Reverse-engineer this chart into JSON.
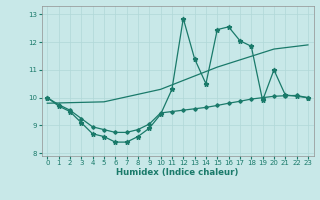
{
  "xlabel": "Humidex (Indice chaleur)",
  "background_color": "#c8e8e8",
  "grid_color": "#b0d8d8",
  "line_color": "#1a7a6a",
  "xlim": [
    -0.5,
    23.5
  ],
  "ylim": [
    7.9,
    13.3
  ],
  "yticks": [
    8,
    9,
    10,
    11,
    12,
    13
  ],
  "xticks": [
    0,
    1,
    2,
    3,
    4,
    5,
    6,
    7,
    8,
    9,
    10,
    11,
    12,
    13,
    14,
    15,
    16,
    17,
    18,
    19,
    20,
    21,
    22,
    23
  ],
  "series": [
    {
      "x": [
        0,
        1,
        2,
        3,
        4,
        5,
        6,
        7,
        8,
        9,
        10,
        11,
        12,
        13,
        14,
        15,
        16,
        17,
        18,
        19,
        20,
        21,
        22,
        23
      ],
      "y": [
        10.0,
        9.7,
        9.5,
        9.1,
        8.7,
        8.6,
        8.4,
        8.4,
        8.6,
        8.9,
        9.4,
        10.3,
        12.85,
        11.4,
        10.5,
        12.45,
        12.55,
        12.05,
        11.85,
        9.9,
        11.0,
        10.1,
        10.05,
        10.0
      ],
      "marker": "star",
      "linewidth": 0.9
    },
    {
      "x": [
        0,
        1,
        2,
        3,
        4,
        5,
        6,
        7,
        8,
        9,
        10,
        11,
        12,
        13,
        14,
        15,
        16,
        17,
        18,
        19,
        20,
        21,
        22,
        23
      ],
      "y": [
        10.0,
        9.75,
        9.55,
        9.25,
        8.95,
        8.85,
        8.75,
        8.75,
        8.85,
        9.05,
        9.45,
        9.5,
        9.55,
        9.6,
        9.65,
        9.72,
        9.8,
        9.87,
        9.95,
        10.0,
        10.05,
        10.07,
        10.08,
        10.0
      ],
      "marker": "diamond",
      "linewidth": 0.9
    },
    {
      "x": [
        0,
        5,
        10,
        15,
        20,
        23
      ],
      "y": [
        9.8,
        9.85,
        10.3,
        11.1,
        11.75,
        11.9
      ],
      "marker": "none",
      "linewidth": 0.9
    }
  ]
}
